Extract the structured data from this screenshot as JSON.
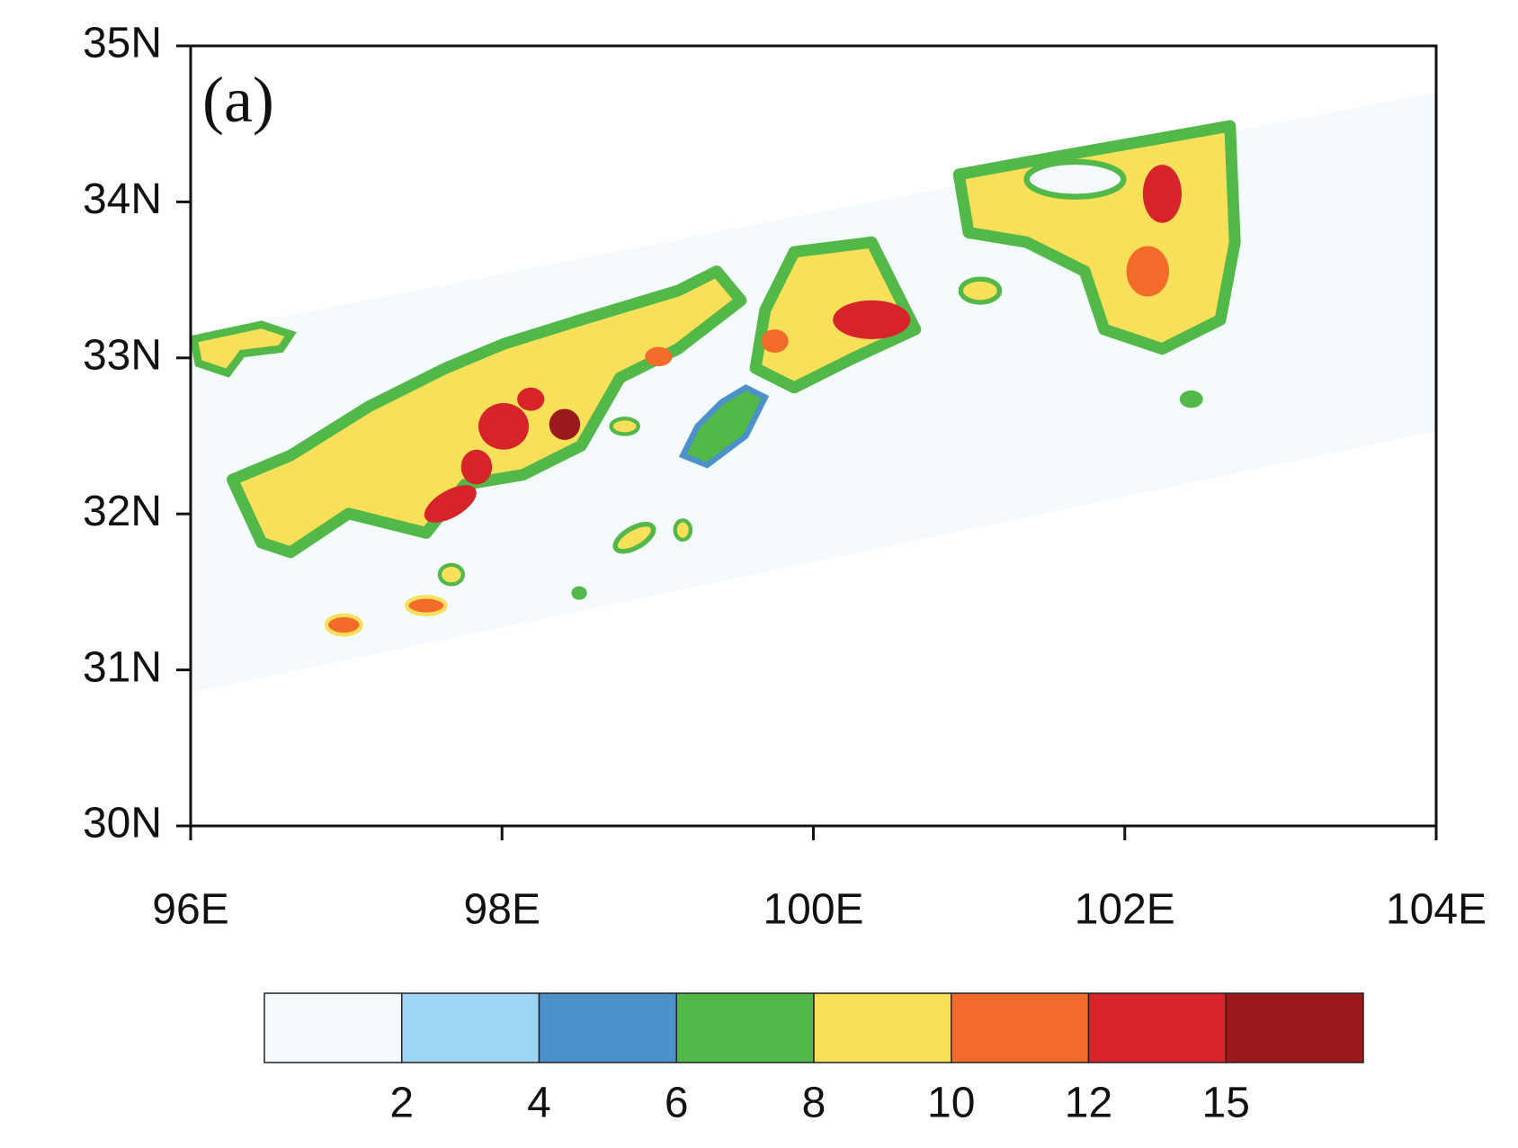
{
  "panel_label": "(a)",
  "chart_data": {
    "type": "contour-map",
    "xlim": [
      96,
      104
    ],
    "ylim": [
      30,
      35
    ],
    "xticks": [
      {
        "value": 96,
        "label": "96E"
      },
      {
        "value": 98,
        "label": "98E"
      },
      {
        "value": 100,
        "label": "100E"
      },
      {
        "value": 102,
        "label": "102E"
      },
      {
        "value": 104,
        "label": "104E"
      }
    ],
    "yticks": [
      {
        "value": 30,
        "label": "30N"
      },
      {
        "value": 31,
        "label": "31N"
      },
      {
        "value": 32,
        "label": "32N"
      },
      {
        "value": 33,
        "label": "33N"
      },
      {
        "value": 34,
        "label": "34N"
      },
      {
        "value": 35,
        "label": "35N"
      }
    ],
    "colorbar": {
      "levels": [
        2,
        4,
        6,
        8,
        10,
        12,
        15
      ],
      "colors": [
        "#f4fafe",
        "#9dd6f4",
        "#4a92c9",
        "#52b848",
        "#f8e05a",
        "#f26b2b",
        "#d7242a",
        "#9a1a1c"
      ]
    }
  }
}
